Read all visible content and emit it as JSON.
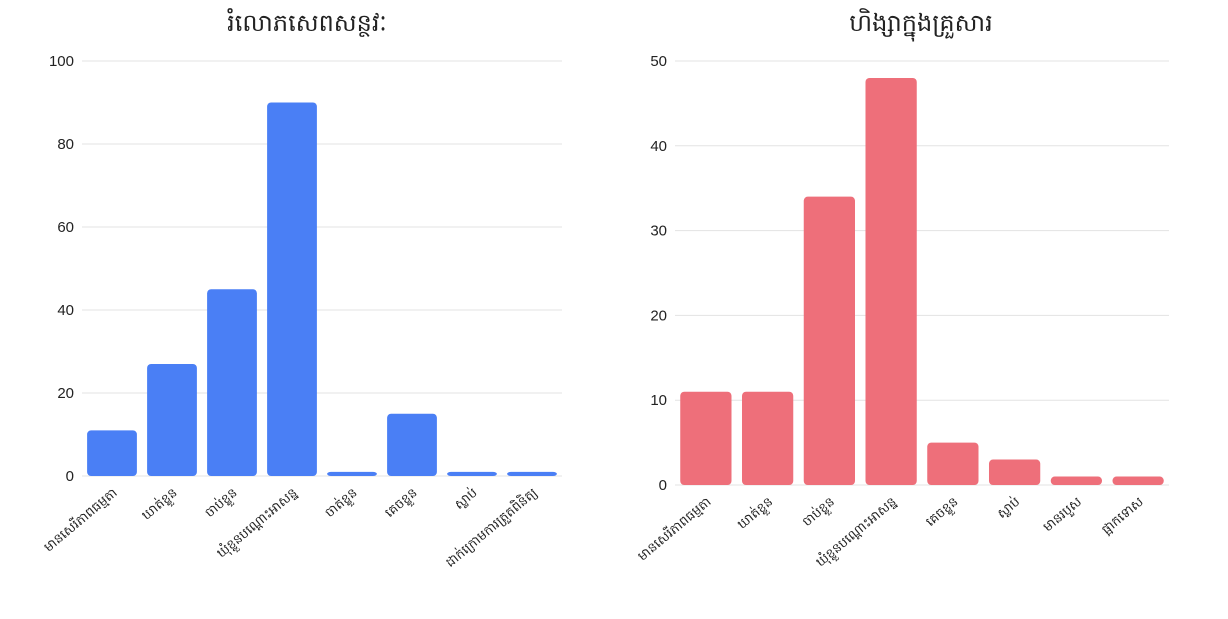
{
  "chart_data": [
    {
      "type": "bar",
      "title": "រំលោភសេពសន្ថវៈ",
      "xlabel": "",
      "ylabel": "",
      "categories": [
        "មានសេរីភាពធម្មតា",
        "ឃាត់ខ្លួន",
        "ចាប់ខ្លួន",
        "ឃុំខ្លួនបណ្ដោះអាសន្ន",
        "ចាត់ខ្លួន",
        "គេចខ្លួន",
        "ស្លាប់",
        "ដាក់ក្រោមការត្រួតពិនិត្យ"
      ],
      "values": [
        11,
        27,
        45,
        90,
        1,
        15,
        1,
        1
      ],
      "ylim": [
        0,
        100
      ],
      "yticks": [
        0,
        20,
        40,
        60,
        80,
        100
      ],
      "color": "#4a7ff5",
      "grid": true
    },
    {
      "type": "bar",
      "title": "ហិង្សាក្នុងគ្រួសារ",
      "xlabel": "",
      "ylabel": "",
      "categories": [
        "មានសេរីភាពធម្មតា",
        "ឃាត់ខ្លួន",
        "ចាប់ខ្លួន",
        "ឃុំខ្លួនបណ្ដោះអាសន្ន",
        "គេចខ្លួន",
        "ស្លាប់",
        "មានរបួស",
        "ផ្អាកទោស"
      ],
      "values": [
        11,
        11,
        34,
        48,
        5,
        3,
        1,
        1
      ],
      "ylim": [
        0,
        50
      ],
      "yticks": [
        0,
        10,
        20,
        30,
        40,
        50
      ],
      "color": "#ee6f7a",
      "grid": true
    }
  ]
}
